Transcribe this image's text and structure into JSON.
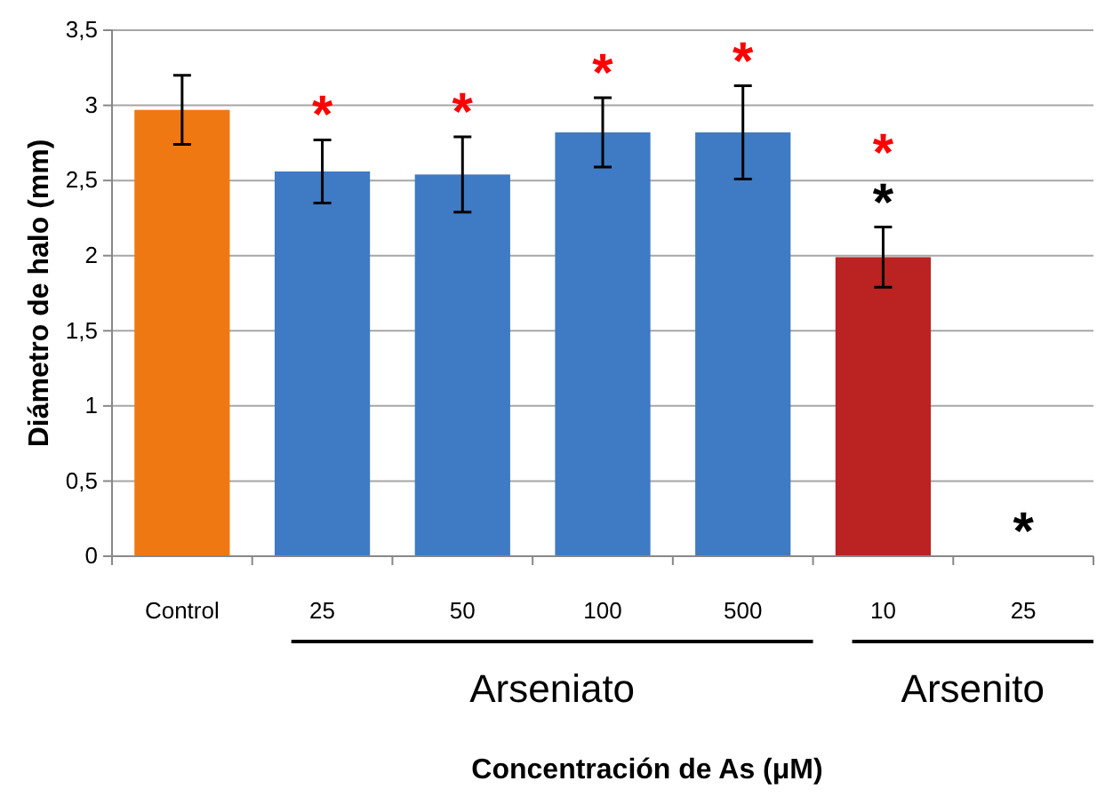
{
  "chart_data": {
    "type": "bar",
    "xlabel": "Concentración de As (μM)",
    "ylabel": "Diámetro de halo (mm)",
    "categories": [
      "Control",
      "25",
      "50",
      "100",
      "500",
      "10",
      "25"
    ],
    "values": [
      2.97,
      2.56,
      2.54,
      2.82,
      2.82,
      1.99,
      0
    ],
    "errors": [
      0.23,
      0.21,
      0.25,
      0.23,
      0.31,
      0.2,
      null
    ],
    "colors": [
      "#f07812",
      "#3f7ac4",
      "#3f7ac4",
      "#3f7ac4",
      "#3f7ac4",
      "#bb2222",
      "#bb2222"
    ],
    "ylim": [
      0,
      3.5
    ],
    "yticks": [
      0,
      {
        "value": 0.5,
        "label": "0,5"
      },
      1,
      {
        "value": 1.5,
        "label": "1,5"
      },
      2,
      {
        "value": 2.5,
        "label": "2,5"
      },
      3,
      {
        "value": 3.5,
        "label": "3,5"
      }
    ],
    "grid": "y",
    "annotations": [
      "Arseniato",
      "Arsenito",
      "*",
      "*",
      "*",
      "*",
      "*",
      "*",
      "*"
    ]
  }
}
